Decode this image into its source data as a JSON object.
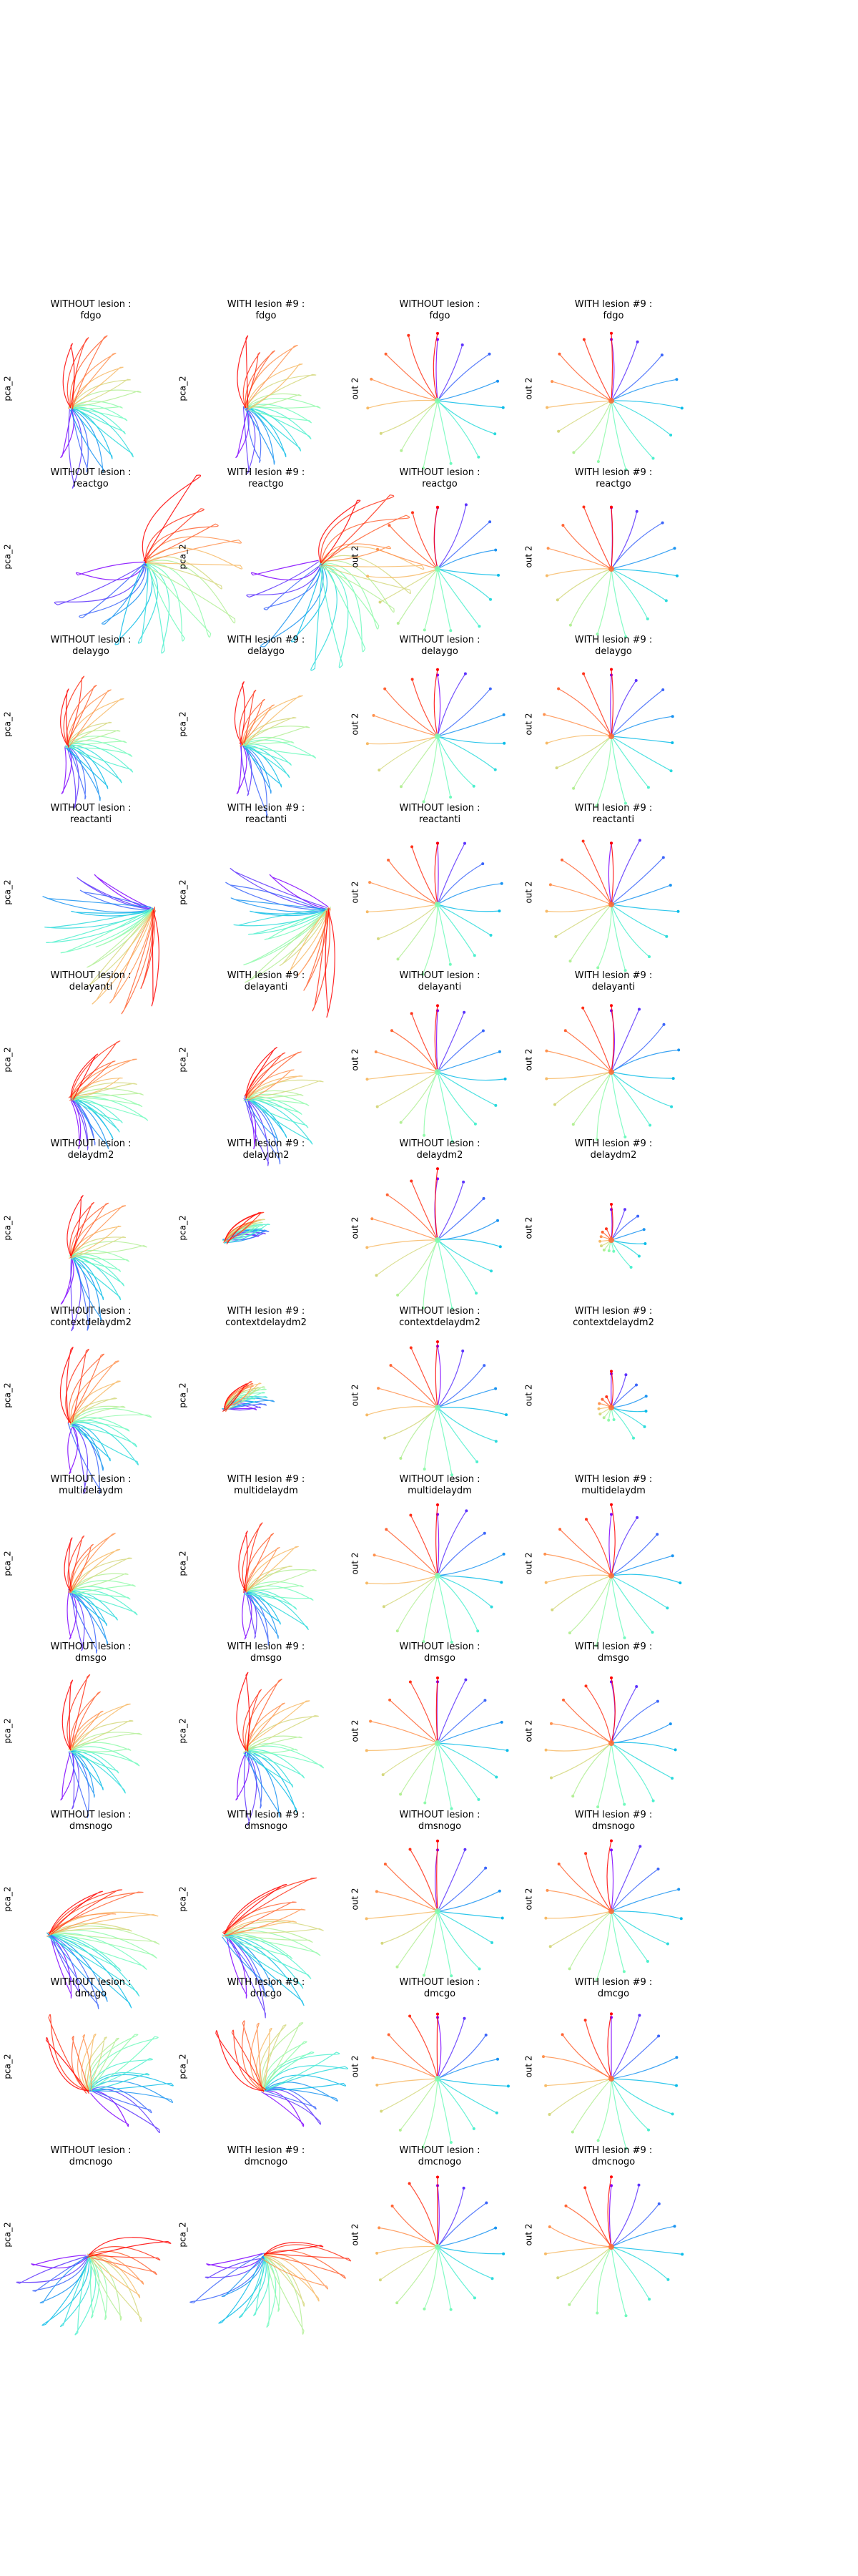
{
  "figure": {
    "lesion_id": "#9",
    "panel_titles": {
      "without": "WITHOUT lesion :",
      "with": "WITH lesion #9 :"
    },
    "ylabels": {
      "pca": "pca_2",
      "out": "out 2"
    },
    "tasks": [
      "fdgo",
      "reactgo",
      "delaygo",
      "reactanti",
      "delayanti",
      "delaydm2",
      "contextdelaydm2",
      "multidelaydm",
      "dmsgo",
      "dmsnogo",
      "dmcgo",
      "dmcnogo"
    ],
    "column_kinds": [
      "pca-without",
      "pca-with",
      "out-without",
      "out-with"
    ],
    "colormap": "rainbow",
    "colormap_stops": [
      "#7f00ff",
      "#3f5ffb",
      "#00b5eb",
      "#40ecd4",
      "#80ffb4",
      "#c0eb8d",
      "#ffb360",
      "#ff5d30",
      "#ff0000"
    ]
  },
  "chart_data": {
    "type": "line",
    "layout": "12 rows (tasks) x 4 columns: PCA trajectories without/with lesion, output trajectories without/with lesion",
    "grid": false,
    "axes_visible": false,
    "series_count_per_panel": 16,
    "series_coloring": "by stimulus direction, rainbow colormap"
  }
}
